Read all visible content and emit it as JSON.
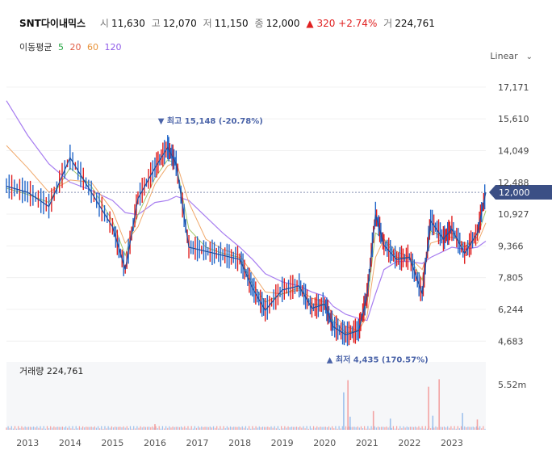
{
  "header": {
    "name": "SNT다이내믹스",
    "open_label": "시",
    "open": "11,630",
    "high_label": "고",
    "high": "12,070",
    "low_label": "저",
    "low": "11,150",
    "close_label": "종",
    "close": "12,000",
    "change": "▲ 320 +2.74%",
    "volume_label": "거",
    "volume": "224,761"
  },
  "ma_legend": {
    "title": "이동평균",
    "periods": [
      "5",
      "20",
      "60",
      "120"
    ],
    "colors": [
      "#28a745",
      "#e15d44",
      "#e8933a",
      "#8f5be8"
    ]
  },
  "scale_button": {
    "label": "Linear",
    "icon": "chevron-down-icon"
  },
  "colors": {
    "up": "#e02020",
    "down": "#2166c9",
    "current": "#3b4f85"
  },
  "chart_data": {
    "type": "line",
    "price": {
      "ylim": [
        3900,
        17800
      ],
      "yticks": [
        "17,171",
        "15,610",
        "14,049",
        "12,488",
        "10,927",
        "9,366",
        "7,805",
        "6,244",
        "4,683"
      ],
      "ytick_values": [
        17171,
        15610,
        14049,
        12488,
        10927,
        9366,
        7805,
        6244,
        4683
      ],
      "current": {
        "label": "12,000",
        "value": 12000
      },
      "x": [
        2012.5,
        2013.0,
        2013.5,
        2014.0,
        2014.5,
        2015.0,
        2015.3,
        2015.6,
        2016.0,
        2016.3,
        2016.5,
        2016.8,
        2017.2,
        2017.6,
        2018.0,
        2018.3,
        2018.6,
        2019.0,
        2019.4,
        2019.7,
        2020.0,
        2020.2,
        2020.5,
        2020.8,
        2021.0,
        2021.2,
        2021.4,
        2021.7,
        2022.0,
        2022.3,
        2022.5,
        2022.8,
        2023.0,
        2023.3,
        2023.6,
        2023.8
      ],
      "close": [
        12300,
        12000,
        11300,
        13700,
        12000,
        10300,
        8200,
        11700,
        13200,
        14200,
        13400,
        9300,
        9100,
        8900,
        8700,
        7300,
        6200,
        7200,
        7400,
        6300,
        6500,
        5400,
        5000,
        5200,
        6900,
        10900,
        9400,
        8700,
        8800,
        7000,
        10600,
        9700,
        10200,
        9000,
        10000,
        12000
      ],
      "ma20": [
        12200,
        11900,
        11500,
        13200,
        12300,
        10600,
        8900,
        10900,
        12700,
        13600,
        13400,
        10200,
        9300,
        9000,
        8800,
        7500,
        6600,
        7000,
        7300,
        6500,
        6500,
        5700,
        5100,
        5200,
        6500,
        10000,
        9700,
        8800,
        8800,
        7700,
        10100,
        9800,
        10000,
        9300,
        9800,
        11100
      ],
      "ma60": [
        14300,
        13200,
        12000,
        12600,
        12500,
        11100,
        9500,
        10300,
        12400,
        13300,
        13500,
        11500,
        9700,
        9200,
        8900,
        8000,
        7100,
        7000,
        7200,
        6800,
        6600,
        6000,
        5400,
        5200,
        5900,
        8800,
        9700,
        9100,
        8800,
        8200,
        9500,
        9700,
        9800,
        9500,
        9500,
        10500
      ],
      "ma120": [
        16500,
        14800,
        13400,
        12500,
        12100,
        11600,
        11000,
        10900,
        11500,
        11600,
        11800,
        11600,
        10800,
        10000,
        9300,
        8700,
        8000,
        7600,
        7400,
        7100,
        6900,
        6400,
        6000,
        5800,
        5700,
        7000,
        8200,
        8600,
        8600,
        8500,
        8800,
        9100,
        9300,
        9200,
        9300,
        9600
      ]
    },
    "annotations": {
      "high": {
        "text": "▼ 최고 15,148 (-20.78%)",
        "x": 2016.3,
        "value": 15148
      },
      "low": {
        "text": "▲ 최저 4,435 (170.57%)",
        "x": 2020.2,
        "value": 4435
      }
    },
    "volume": {
      "title": "거래량 224,761",
      "max_label": "5.52m",
      "ylim": [
        0,
        5.52
      ],
      "spikes": [
        {
          "x": 2016.0,
          "value": 0.6
        },
        {
          "x": 2020.45,
          "value": 4.0
        },
        {
          "x": 2020.55,
          "value": 5.3
        },
        {
          "x": 2020.6,
          "value": 1.4
        },
        {
          "x": 2021.15,
          "value": 2.0
        },
        {
          "x": 2021.55,
          "value": 1.2
        },
        {
          "x": 2022.45,
          "value": 4.6
        },
        {
          "x": 2022.55,
          "value": 1.5
        },
        {
          "x": 2022.7,
          "value": 5.4
        },
        {
          "x": 2023.25,
          "value": 1.8
        },
        {
          "x": 2023.6,
          "value": 1.1
        }
      ],
      "baseline": 0.25
    },
    "xaxis": {
      "labels": [
        "2013",
        "2014",
        "2015",
        "2016",
        "2017",
        "2018",
        "2019",
        "2020",
        "2021",
        "2022",
        "2023"
      ],
      "values": [
        2013,
        2014,
        2015,
        2016,
        2017,
        2018,
        2019,
        2020,
        2021,
        2022,
        2023
      ],
      "xlim": [
        2012.5,
        2023.8
      ]
    }
  }
}
